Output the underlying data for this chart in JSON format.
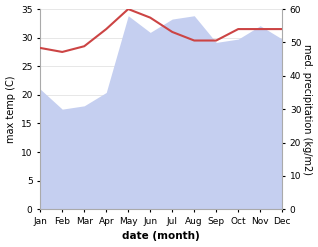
{
  "months": [
    "Jan",
    "Feb",
    "Mar",
    "Apr",
    "May",
    "Jun",
    "Jul",
    "Aug",
    "Sep",
    "Oct",
    "Nov",
    "Dec"
  ],
  "temp_line": [
    28.2,
    27.5,
    28.5,
    31.5,
    35.0,
    33.5,
    31.0,
    29.5,
    29.5,
    31.5,
    31.5,
    31.5
  ],
  "precip_kg": [
    36,
    30,
    31,
    35,
    58,
    53,
    57,
    58,
    50,
    51,
    55,
    51
  ],
  "temp_ylim": [
    0,
    35
  ],
  "precip_ylim": [
    0,
    60
  ],
  "temp_color": "#cc4444",
  "precip_fill_color": "#c5cff0",
  "xlabel": "date (month)",
  "ylabel_left": "max temp (C)",
  "ylabel_right": "med. precipitation (kg/m2)",
  "background_color": "#ffffff",
  "grid_color": "#dddddd"
}
